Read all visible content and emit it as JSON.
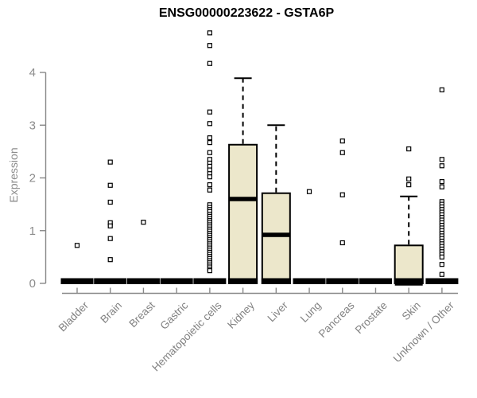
{
  "header": {
    "title": "ENSG00000223622 - GSTA6P"
  },
  "chart_data": {
    "type": "boxplot",
    "title": "ENSG00000223622 - GSTA6P",
    "xlabel": "",
    "ylabel": "Expression",
    "ylim": [
      0,
      4.9
    ],
    "yticks": [
      0,
      1,
      2,
      3,
      4
    ],
    "grid": false,
    "legend": "none",
    "colors": {
      "box_fill": "#ECE7CB",
      "box_border": "#000000",
      "median": "#000000",
      "outlier_fill": "#FFFFFF",
      "axis": "#888888",
      "tick_label": "#8C8C8C",
      "category_label": "#828282",
      "title": "#000000"
    },
    "categories": [
      "Bladder",
      "Brain",
      "Breast",
      "Gastric",
      "Hematopoietic cells",
      "Kidney",
      "Liver",
      "Lung",
      "Pancreas",
      "Prostate",
      "Skin",
      "Unknown / Other"
    ],
    "boxes": [
      {
        "category": "Bladder",
        "q1": 0,
        "median": 0,
        "q3": 0,
        "whisker_low": 0,
        "whisker_high": 0,
        "outliers": [
          0.72
        ]
      },
      {
        "category": "Brain",
        "q1": 0,
        "median": 0,
        "q3": 0,
        "whisker_low": 0,
        "whisker_high": 0,
        "outliers": [
          2.3,
          1.86,
          1.54,
          1.15,
          1.09,
          0.85,
          0.45
        ]
      },
      {
        "category": "Breast",
        "q1": 0,
        "median": 0,
        "q3": 0,
        "whisker_low": 0,
        "whisker_high": 0,
        "outliers": [
          1.16
        ]
      },
      {
        "category": "Gastric",
        "q1": 0,
        "median": 0,
        "q3": 0,
        "whisker_low": 0,
        "whisker_high": 0,
        "outliers": []
      },
      {
        "category": "Hematopoietic cells",
        "q1": 0,
        "median": 0,
        "q3": 0,
        "whisker_low": 0,
        "whisker_high": 0,
        "outliers": [
          4.75,
          4.51,
          4.17,
          3.25,
          3.03,
          2.76,
          2.67,
          2.48,
          2.35,
          2.28,
          2.22,
          2.15,
          2.08,
          2.02,
          1.87,
          1.77,
          1.49,
          1.44,
          1.4,
          1.36,
          1.31,
          1.27,
          1.23,
          1.19,
          1.15,
          1.11,
          1.07,
          1.03,
          0.99,
          0.95,
          0.91,
          0.87,
          0.83,
          0.79,
          0.75,
          0.71,
          0.67,
          0.63,
          0.59,
          0.55,
          0.51,
          0.47,
          0.43,
          0.39,
          0.35,
          0.31,
          0.27,
          0.24
        ]
      },
      {
        "category": "Kidney",
        "q1": 0,
        "median": 1.6,
        "q3": 2.63,
        "whisker_low": 0,
        "whisker_high": 3.89,
        "outliers": []
      },
      {
        "category": "Liver",
        "q1": 0,
        "median": 0.92,
        "q3": 1.71,
        "whisker_low": 0,
        "whisker_high": 3.0,
        "outliers": []
      },
      {
        "category": "Lung",
        "q1": 0,
        "median": 0,
        "q3": 0,
        "whisker_low": 0,
        "whisker_high": 0,
        "outliers": [
          1.74
        ]
      },
      {
        "category": "Pancreas",
        "q1": 0,
        "median": 0,
        "q3": 0,
        "whisker_low": 0,
        "whisker_high": 0,
        "outliers": [
          2.7,
          2.48,
          1.68,
          0.77
        ]
      },
      {
        "category": "Prostate",
        "q1": 0,
        "median": 0,
        "q3": 0,
        "whisker_low": 0,
        "whisker_high": 0,
        "outliers": []
      },
      {
        "category": "Skin",
        "q1": 0,
        "median": 0,
        "q3": 0.72,
        "whisker_low": 0,
        "whisker_high": 1.65,
        "outliers": [
          2.55,
          1.98,
          1.87
        ]
      },
      {
        "category": "Unknown / Other",
        "q1": 0,
        "median": 0,
        "q3": 0,
        "whisker_low": 0,
        "whisker_high": 0,
        "outliers": [
          3.67,
          2.35,
          2.23,
          1.93,
          1.83,
          1.55,
          1.5,
          1.45,
          1.4,
          1.35,
          1.3,
          1.25,
          1.2,
          1.15,
          1.1,
          1.05,
          1.0,
          0.95,
          0.9,
          0.85,
          0.8,
          0.75,
          0.7,
          0.65,
          0.6,
          0.55,
          0.5,
          0.36,
          0.17
        ]
      }
    ]
  }
}
